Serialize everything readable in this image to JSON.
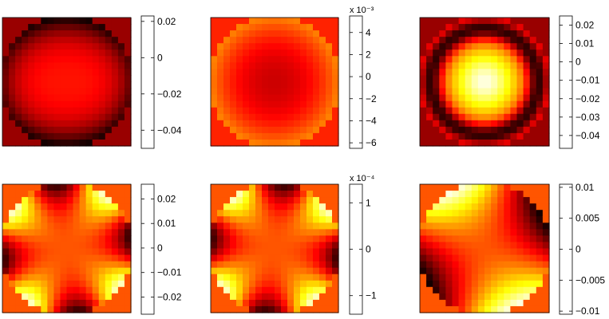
{
  "chart_data": [
    {
      "type": "heatmap",
      "colormap": "hot",
      "pattern": "ring_dark",
      "colorbar": {
        "min": -0.05,
        "max": 0.023,
        "ticks": [
          0.02,
          0,
          -0.02,
          -0.04
        ],
        "labels": [
          "0.02",
          "0",
          "−0.02",
          "−0.04"
        ],
        "exponent": ""
      }
    },
    {
      "type": "heatmap",
      "colormap": "hot",
      "pattern": "center_bright",
      "colorbar": {
        "min": -6.5,
        "max": 5.5,
        "ticks": [
          4,
          2,
          0,
          -2,
          -4,
          -6
        ],
        "labels": [
          "4",
          "2",
          "0",
          "−2",
          "−4",
          "−6"
        ],
        "exponent": "x 10⁻³"
      }
    },
    {
      "type": "heatmap",
      "colormap": "hot",
      "pattern": "center_bright_dark_ring",
      "colorbar": {
        "min": -0.047,
        "max": 0.025,
        "ticks": [
          0.02,
          0.01,
          0,
          -0.01,
          -0.02,
          -0.03,
          -0.04
        ],
        "labels": [
          "0.02",
          "0.01",
          "0",
          "−0.01",
          "−0.02",
          "−0.03",
          "−0.04"
        ],
        "exponent": ""
      }
    },
    {
      "type": "heatmap",
      "colormap": "hot",
      "pattern": "angular_mode_4",
      "colorbar": {
        "min": -0.027,
        "max": 0.026,
        "ticks": [
          0.02,
          0.01,
          0,
          -0.01,
          -0.02
        ],
        "labels": [
          "0.02",
          "0.01",
          "0",
          "−0.01",
          "−0.02"
        ],
        "exponent": ""
      }
    },
    {
      "type": "heatmap",
      "colormap": "hot",
      "pattern": "angular_mode_4_rotated",
      "colorbar": {
        "min": -1.4,
        "max": 1.4,
        "ticks": [
          1,
          0,
          -1
        ],
        "labels": [
          "1",
          "0",
          "−1"
        ],
        "exponent": "x 10⁻⁴"
      }
    },
    {
      "type": "heatmap",
      "colormap": "hot",
      "pattern": "angular_mode_2",
      "colorbar": {
        "min": -0.0105,
        "max": 0.0105,
        "ticks": [
          0.01,
          0.005,
          0,
          -0.005,
          -0.01
        ],
        "labels": [
          "0.01",
          "0.005",
          "0",
          "−0.005",
          "−0.01"
        ],
        "exponent": ""
      }
    }
  ]
}
